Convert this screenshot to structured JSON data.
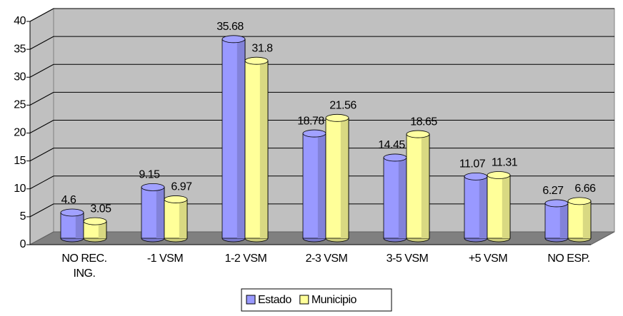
{
  "chart_data": {
    "type": "bar",
    "categories": [
      "NO REC. ING.",
      "-1 VSM",
      "1-2 VSM",
      "2-3 VSM",
      "3-5 VSM",
      "+5 VSM",
      "NO ESP."
    ],
    "series": [
      {
        "name": "Estado",
        "color": "#9999ff",
        "values": [
          4.6,
          9.15,
          35.68,
          18.78,
          14.45,
          11.07,
          6.27
        ]
      },
      {
        "name": "Municipio",
        "color": "#ffff99",
        "values": [
          3.05,
          6.97,
          31.8,
          21.56,
          18.65,
          11.31,
          6.66
        ]
      }
    ],
    "ylim": [
      0,
      40
    ],
    "yticks": [
      0,
      5,
      10,
      15,
      20,
      25,
      30,
      35,
      40
    ],
    "grid": true,
    "legend": "bottom"
  }
}
